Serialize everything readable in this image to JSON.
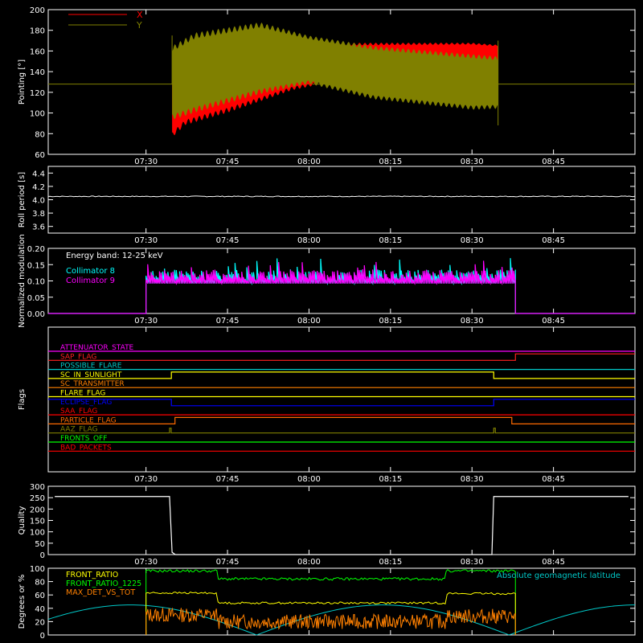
{
  "time_ticks": [
    "07:30",
    "07:45",
    "08:00",
    "08:15",
    "08:30",
    "08:45"
  ],
  "chart_data": [
    {
      "id": "pointing",
      "type": "line",
      "ylabel": "Pointing [°]",
      "ylim": [
        60,
        200
      ],
      "yticks": [
        60,
        80,
        100,
        120,
        140,
        160,
        180,
        200
      ],
      "legend": "top-left",
      "series": [
        {
          "name": "X",
          "color": "#ff0000",
          "note": "oscillating envelope",
          "upper": [
            [
              7.58,
              142
            ],
            [
              7.62,
              158
            ],
            [
              7.75,
              165
            ],
            [
              7.95,
              168
            ],
            [
              8.2,
              168
            ],
            [
              8.5,
              168
            ],
            [
              8.58,
              166
            ]
          ],
          "lower": [
            [
              7.58,
              76
            ],
            [
              7.62,
              88
            ],
            [
              7.75,
              100
            ],
            [
              7.95,
              122
            ],
            [
              8.2,
              138
            ],
            [
              8.5,
              145
            ],
            [
              8.58,
              148
            ]
          ]
        },
        {
          "name": "Y",
          "color": "#808000",
          "note": "oscillating envelope",
          "upper": [
            [
              7.58,
              165
            ],
            [
              7.65,
              178
            ],
            [
              7.85,
              188
            ],
            [
              8.0,
              175
            ],
            [
              8.2,
              165
            ],
            [
              8.5,
              157
            ],
            [
              8.58,
              155
            ]
          ],
          "lower": [
            [
              7.58,
              93
            ],
            [
              7.65,
              100
            ],
            [
              7.85,
              118
            ],
            [
              8.0,
              128
            ],
            [
              8.2,
              113
            ],
            [
              8.5,
              103
            ],
            [
              8.58,
              104
            ]
          ]
        }
      ],
      "baseline": 128
    },
    {
      "id": "roll",
      "type": "line",
      "ylabel": "Roll period [s]",
      "ylim": [
        3.5,
        4.5
      ],
      "yticks": [
        3.6,
        3.8,
        4.0,
        4.2,
        4.4
      ],
      "series": [
        {
          "name": "",
          "color": "#ffffff",
          "values_const": 4.05
        }
      ]
    },
    {
      "id": "modulation",
      "type": "line",
      "ylabel": "Normalized modulation",
      "ylim": [
        0,
        0.2
      ],
      "yticks": [
        0.0,
        0.05,
        0.1,
        0.15,
        0.2
      ],
      "annotation": "Energy band: 12-25 keV",
      "series": [
        {
          "name": "Collimator 8",
          "color": "#00ffff",
          "active": [
            7.5,
            8.6333
          ],
          "level": 0.1
        },
        {
          "name": "Collimator 9",
          "color": "#ff00ff",
          "active": [
            7.5,
            8.6333
          ],
          "level": 0.1
        }
      ]
    },
    {
      "id": "flags",
      "type": "line",
      "ylabel": "Flags",
      "series": [
        {
          "name": "ATTENUATOR_STATE",
          "color": "#ff00ff",
          "steps": []
        },
        {
          "name": "SAP_FLAG",
          "color": "#ff2020",
          "steps": [
            [
              8.6333,
              1
            ]
          ]
        },
        {
          "name": "POSSIBLE_FLARE",
          "color": "#00c8c8",
          "steps": []
        },
        {
          "name": "SC_IN_SUNLIGHT",
          "color": "#ffff00",
          "steps": [
            [
              7.5778,
              1
            ],
            [
              8.5667,
              0
            ]
          ]
        },
        {
          "name": "SC_TRANSMITTER",
          "color": "#ff8000",
          "steps": []
        },
        {
          "name": "FLARE_FLAG",
          "color": "#ffff00",
          "steps": []
        },
        {
          "name": "ECLIPSE_FLAG",
          "color": "#0000ff",
          "start": 1,
          "steps": [
            [
              7.5778,
              0
            ],
            [
              8.5667,
              1
            ]
          ]
        },
        {
          "name": "SAA_FLAG",
          "color": "#ff0000",
          "steps": []
        },
        {
          "name": "PARTICLE_FLAG",
          "color": "#ff6a00",
          "steps": [
            [
              7.5889,
              1
            ],
            [
              8.6222,
              0
            ]
          ]
        },
        {
          "name": "AAZ_FLAG",
          "color": "#808000",
          "pulses": [
            7.5722,
            8.5667
          ]
        },
        {
          "name": "FRONTS_OFF",
          "color": "#00ff00",
          "steps": []
        },
        {
          "name": "BAD_PACKETS",
          "color": "#ff0000",
          "steps": []
        }
      ]
    },
    {
      "id": "quality",
      "type": "line",
      "ylabel": "Quality",
      "ylim": [
        0,
        300
      ],
      "yticks": [
        0,
        50,
        100,
        150,
        200,
        250,
        300
      ],
      "series": [
        {
          "name": "",
          "color": "#ffffff",
          "points": [
            [
              7.22,
              255
            ],
            [
              7.5722,
              255
            ],
            [
              7.58,
              10
            ],
            [
              7.59,
              0
            ],
            [
              8.5611,
              0
            ],
            [
              8.5667,
              255
            ],
            [
              8.98,
              255
            ]
          ]
        }
      ]
    },
    {
      "id": "ratios",
      "type": "line",
      "ylabel": "Degrees or %",
      "ylim": [
        0,
        100
      ],
      "yticks": [
        0,
        20,
        40,
        60,
        80,
        100
      ],
      "annotation": "Absolute geomagnetic latitude",
      "series": [
        {
          "name": "FRONT_RATIO",
          "color": "#ffff00"
        },
        {
          "name": "FRONT_RATIO_1225",
          "color": "#00ff00"
        },
        {
          "name": "MAX_DET_VS_TOT",
          "color": "#ff8000"
        },
        {
          "name": "Absolute geomagnetic latitude",
          "color": "#00c8c8"
        }
      ]
    }
  ]
}
